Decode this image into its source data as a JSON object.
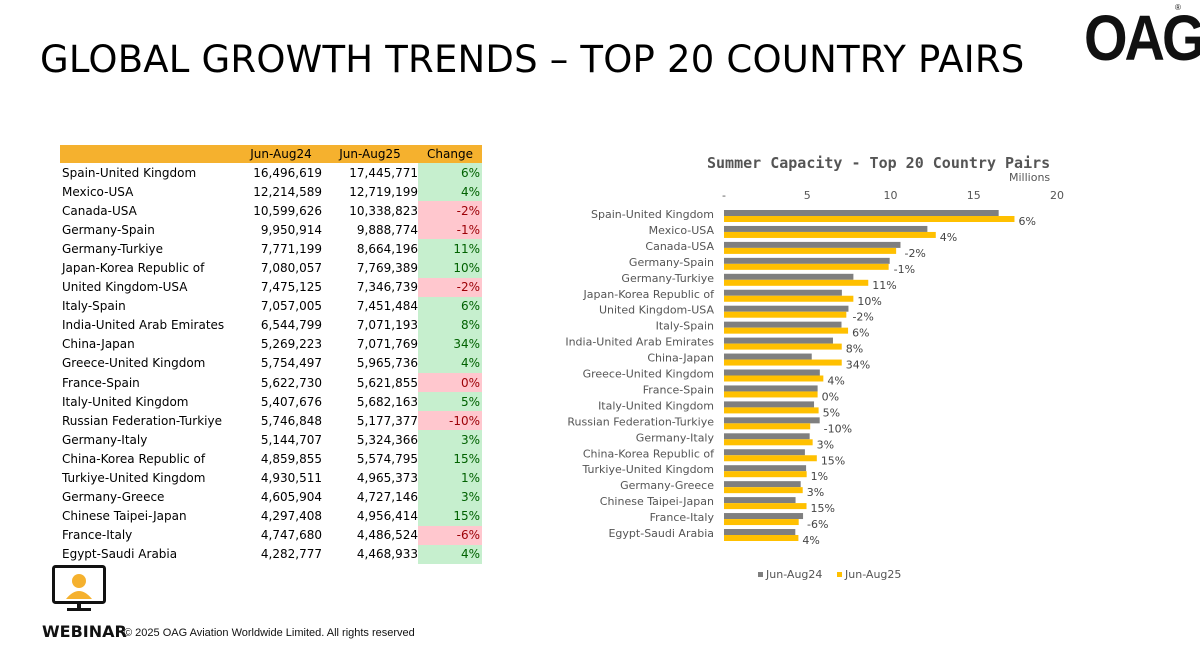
{
  "page": {
    "title": "GLOBAL GROWTH TRENDS – TOP 20 COUNTRY PAIRS",
    "logo": "OAG",
    "logo_mark": "®",
    "webinar_label": "WEBINAR",
    "copyright": "© 2025 OAG Aviation Worldwide Limited. All rights reserved"
  },
  "table": {
    "headers": [
      "",
      "Jun-Aug24",
      "Jun-Aug25",
      "Change"
    ],
    "rows": [
      {
        "pair": "Spain-United Kingdom",
        "v24": "16,496,619",
        "v25": "17,445,771",
        "change": "6%"
      },
      {
        "pair": "Mexico-USA",
        "v24": "12,214,589",
        "v25": "12,719,199",
        "change": "4%"
      },
      {
        "pair": "Canada-USA",
        "v24": "10,599,626",
        "v25": "10,338,823",
        "change": "-2%"
      },
      {
        "pair": "Germany-Spain",
        "v24": "9,950,914",
        "v25": "9,888,774",
        "change": "-1%"
      },
      {
        "pair": "Germany-Turkiye",
        "v24": "7,771,199",
        "v25": "8,664,196",
        "change": "11%"
      },
      {
        "pair": "Japan-Korea Republic of",
        "v24": "7,080,057",
        "v25": "7,769,389",
        "change": "10%"
      },
      {
        "pair": "United Kingdom-USA",
        "v24": "7,475,125",
        "v25": "7,346,739",
        "change": "-2%"
      },
      {
        "pair": "Italy-Spain",
        "v24": "7,057,005",
        "v25": "7,451,484",
        "change": "6%"
      },
      {
        "pair": "India-United Arab Emirates",
        "v24": "6,544,799",
        "v25": "7,071,193",
        "change": "8%"
      },
      {
        "pair": "China-Japan",
        "v24": "5,269,223",
        "v25": "7,071,769",
        "change": "34%"
      },
      {
        "pair": "Greece-United Kingdom",
        "v24": "5,754,497",
        "v25": "5,965,736",
        "change": "4%"
      },
      {
        "pair": "France-Spain",
        "v24": "5,622,730",
        "v25": "5,621,855",
        "change": "0%"
      },
      {
        "pair": "Italy-United Kingdom",
        "v24": "5,407,676",
        "v25": "5,682,163",
        "change": "5%"
      },
      {
        "pair": "Russian Federation-Turkiye",
        "v24": "5,746,848",
        "v25": "5,177,377",
        "change": "-10%"
      },
      {
        "pair": "Germany-Italy",
        "v24": "5,144,707",
        "v25": "5,324,366",
        "change": "3%"
      },
      {
        "pair": "China-Korea Republic of",
        "v24": "4,859,855",
        "v25": "5,574,795",
        "change": "15%"
      },
      {
        "pair": "Turkiye-United Kingdom",
        "v24": "4,930,511",
        "v25": "4,965,373",
        "change": "1%"
      },
      {
        "pair": "Germany-Greece",
        "v24": "4,605,904",
        "v25": "4,727,146",
        "change": "3%"
      },
      {
        "pair": "Chinese Taipei-Japan",
        "v24": "4,297,408",
        "v25": "4,956,414",
        "change": "15%"
      },
      {
        "pair": "France-Italy",
        "v24": "4,747,680",
        "v25": "4,486,524",
        "change": "-6%"
      },
      {
        "pair": "Egypt-Saudi Arabia",
        "v24": "4,282,777",
        "v25": "4,468,933",
        "change": "4%"
      }
    ]
  },
  "colors": {
    "header_fill": "#F5B12E",
    "positive_fill": "#C6EFCE",
    "negative_fill": "#FFC7CE",
    "series_2024": "#7F7F7F",
    "series_2025": "#FFC000"
  },
  "chart_data": {
    "type": "bar",
    "orientation": "horizontal",
    "title": "Summer Capacity - Top 20 Country Pairs",
    "unit_label": "Millions",
    "xlim": [
      0,
      20
    ],
    "x_ticks": [
      "-",
      "5",
      "10",
      "15",
      "20"
    ],
    "legend_position": "bottom-left",
    "categories": [
      "Spain-United Kingdom",
      "Mexico-USA",
      "Canada-USA",
      "Germany-Spain",
      "Germany-Turkiye",
      "Japan-Korea Republic of",
      "United Kingdom-USA",
      "Italy-Spain",
      "India-United Arab Emirates",
      "China-Japan",
      "Greece-United Kingdom",
      "France-Spain",
      "Italy-United Kingdom",
      "Russian Federation-Turkiye",
      "Germany-Italy",
      "China-Korea Republic of",
      "Turkiye-United Kingdom",
      "Germany-Greece",
      "Chinese Taipei-Japan",
      "France-Italy",
      "Egypt-Saudi Arabia"
    ],
    "series": [
      {
        "name": "Jun-Aug24",
        "values": [
          16.496619,
          12.214589,
          10.599626,
          9.950914,
          7.771199,
          7.080057,
          7.475125,
          7.057005,
          6.544799,
          5.269223,
          5.754497,
          5.62273,
          5.407676,
          5.746848,
          5.144707,
          4.859855,
          4.930511,
          4.605904,
          4.297408,
          4.74768,
          4.282777
        ]
      },
      {
        "name": "Jun-Aug25",
        "values": [
          17.445771,
          12.719199,
          10.338823,
          9.888774,
          8.664196,
          7.769389,
          7.346739,
          7.451484,
          7.071193,
          7.071769,
          5.965736,
          5.621855,
          5.682163,
          5.177377,
          5.324366,
          5.574795,
          4.965373,
          4.727146,
          4.956414,
          4.486524,
          4.468933
        ]
      }
    ],
    "data_labels": [
      "6%",
      "4%",
      "-2%",
      "-1%",
      "11%",
      "10%",
      "-2%",
      "6%",
      "8%",
      "34%",
      "4%",
      "0%",
      "5%",
      "-10%",
      "3%",
      "15%",
      "1%",
      "3%",
      "15%",
      "-6%",
      "4%"
    ]
  }
}
